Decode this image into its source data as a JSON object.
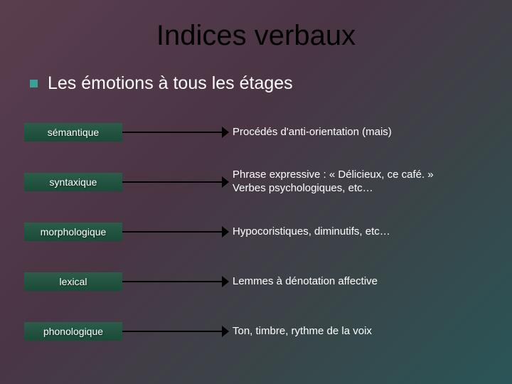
{
  "title": "Indices verbaux",
  "subtitle": "Les émotions à tous les étages",
  "colors": {
    "bullet": "#3aa098",
    "pill_bg_top": "#2c5d4a",
    "pill_bg_bottom": "#1a4a38",
    "title_color": "#000000",
    "text_color": "#ffffff",
    "arrow_color": "#000000"
  },
  "rows": [
    {
      "label": "sémantique",
      "desc": "Procédés d'anti-orientation (mais)"
    },
    {
      "label": "syntaxique",
      "desc": "Phrase expressive : « Délicieux, ce café. »\nVerbes psychologiques, etc…"
    },
    {
      "label": "morphologique",
      "desc": "Hypocoristiques, diminutifs, etc…"
    },
    {
      "label": "lexical",
      "desc": "Lemmes à dénotation affective"
    },
    {
      "label": "phonologique",
      "desc": "Ton, timbre, rythme de la voix"
    }
  ]
}
